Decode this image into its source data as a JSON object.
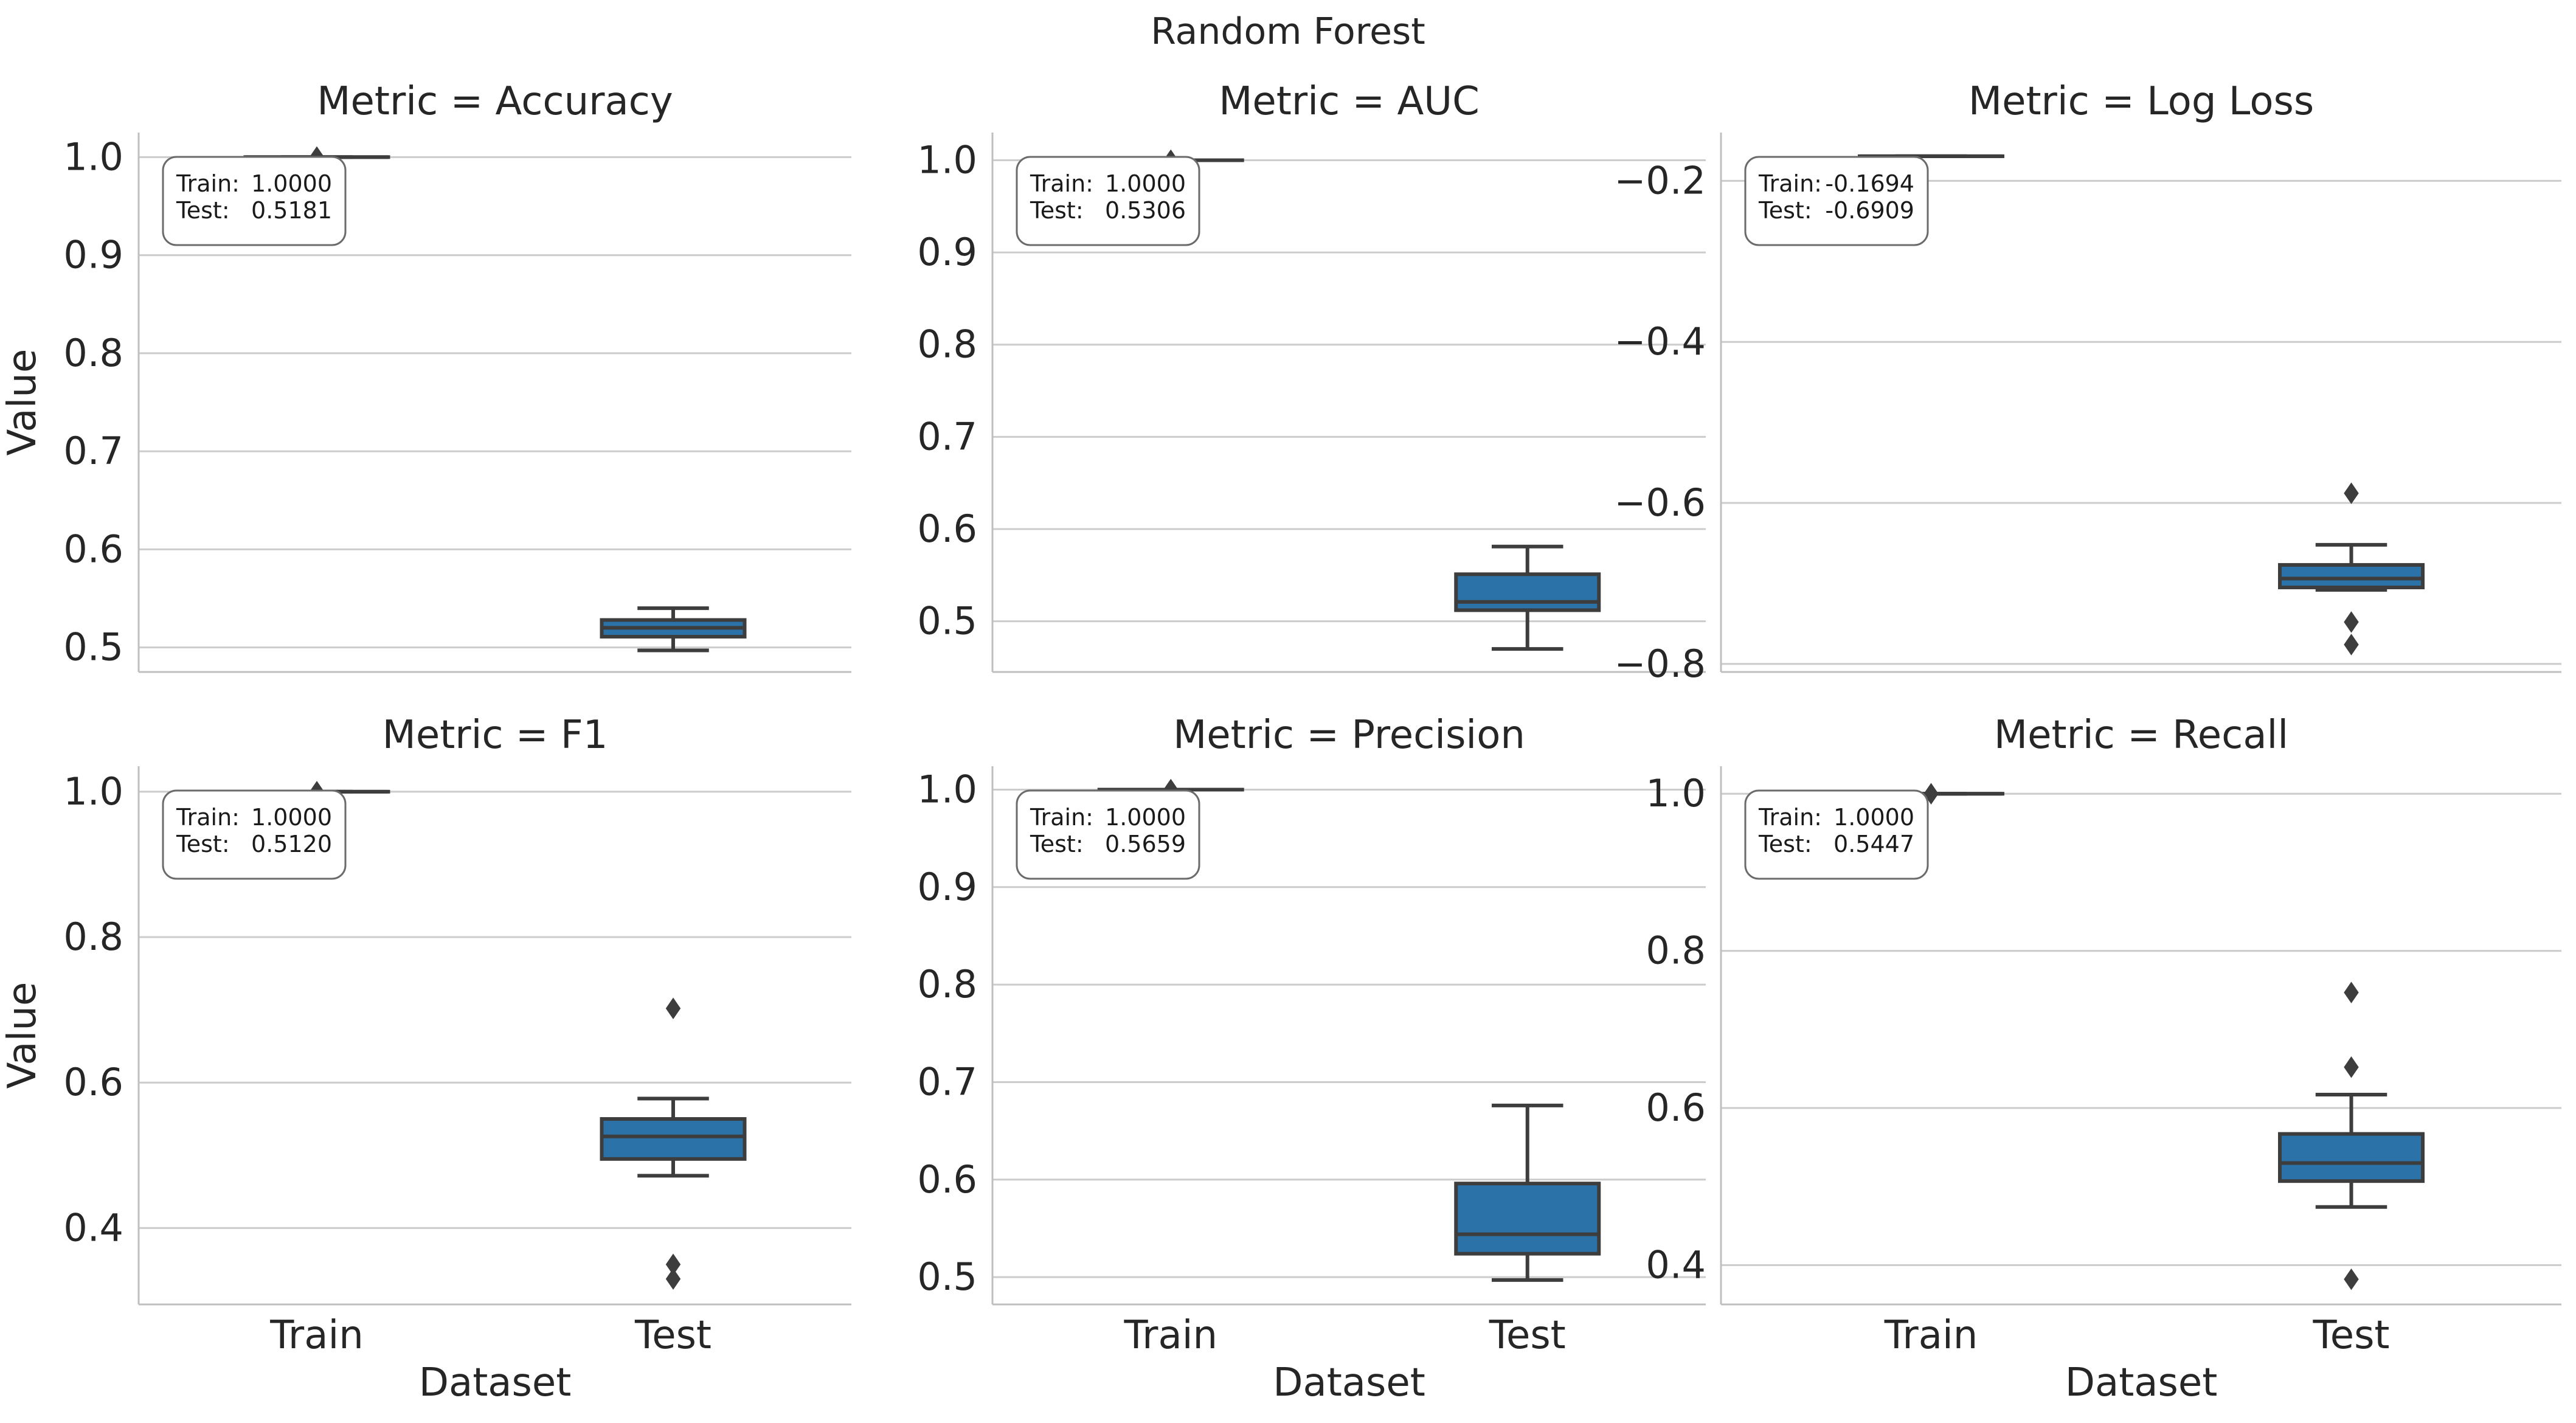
{
  "figure": {
    "title": "Random Forest"
  },
  "colors": {
    "box_fill": "#2b72a8",
    "line": "#3d3d3d",
    "grid": "#cccccc",
    "axis": "#bfbfbf",
    "annot_border": "#6b6b6b"
  },
  "chart_data": [
    {
      "type": "box",
      "title": "Metric = Accuracy",
      "xlabel": "",
      "ylabel": "Value",
      "categories": [
        "Train",
        "Test"
      ],
      "ylim": [
        0.475,
        1.025
      ],
      "yticks": [
        0.5,
        0.6,
        0.7,
        0.8,
        0.9,
        1.0
      ],
      "ytick_labels": [
        "0.5",
        "0.6",
        "0.7",
        "0.8",
        "0.9",
        "1.0"
      ],
      "show_x_tick_labels": false,
      "boxes": [
        {
          "category": "Train",
          "q1": 1.0,
          "median": 1.0,
          "q3": 1.0,
          "whisker_low": 1.0,
          "whisker_high": 1.0,
          "outliers": [
            1.0
          ]
        },
        {
          "category": "Test",
          "q1": 0.511,
          "median": 0.52,
          "q3": 0.528,
          "whisker_low": 0.497,
          "whisker_high": 0.54,
          "outliers": []
        }
      ],
      "annotation": [
        {
          "label": "Train:",
          "value": "1.0000"
        },
        {
          "label": "Test:",
          "value": "0.5181"
        }
      ]
    },
    {
      "type": "box",
      "title": "Metric = AUC",
      "xlabel": "",
      "ylabel": "",
      "categories": [
        "Train",
        "Test"
      ],
      "ylim": [
        0.445,
        1.03
      ],
      "yticks": [
        0.5,
        0.6,
        0.7,
        0.8,
        0.9,
        1.0
      ],
      "ytick_labels": [
        "0.5",
        "0.6",
        "0.7",
        "0.8",
        "0.9",
        "1.0"
      ],
      "show_x_tick_labels": false,
      "boxes": [
        {
          "category": "Train",
          "q1": 1.0,
          "median": 1.0,
          "q3": 1.0,
          "whisker_low": 1.0,
          "whisker_high": 1.0,
          "outliers": [
            1.0
          ]
        },
        {
          "category": "Test",
          "q1": 0.512,
          "median": 0.521,
          "q3": 0.551,
          "whisker_low": 0.47,
          "whisker_high": 0.581,
          "outliers": []
        }
      ],
      "annotation": [
        {
          "label": "Train:",
          "value": "1.0000"
        },
        {
          "label": "Test:",
          "value": "0.5306"
        }
      ]
    },
    {
      "type": "box",
      "title": "Metric = Log Loss",
      "xlabel": "",
      "ylabel": "",
      "categories": [
        "Train",
        "Test"
      ],
      "ylim": [
        -0.81,
        -0.14
      ],
      "yticks": [
        -0.8,
        -0.6,
        -0.4,
        -0.2
      ],
      "ytick_labels": [
        "−0.8",
        "−0.6",
        "−0.4",
        "−0.2"
      ],
      "show_x_tick_labels": false,
      "boxes": [
        {
          "category": "Train",
          "q1": -0.1694,
          "median": -0.1694,
          "q3": -0.1694,
          "whisker_low": -0.1694,
          "whisker_high": -0.1694,
          "outliers": []
        },
        {
          "category": "Test",
          "q1": -0.705,
          "median": -0.694,
          "q3": -0.677,
          "whisker_low": -0.708,
          "whisker_high": -0.652,
          "outliers": [
            -0.588,
            -0.748,
            -0.776
          ]
        }
      ],
      "annotation": [
        {
          "label": "Train:",
          "value": "-0.1694"
        },
        {
          "label": "Test:",
          "value": "-0.6909"
        }
      ]
    },
    {
      "type": "box",
      "title": "Metric = F1",
      "xlabel": "Dataset",
      "ylabel": "Value",
      "categories": [
        "Train",
        "Test"
      ],
      "ylim": [
        0.295,
        1.035
      ],
      "yticks": [
        0.4,
        0.6,
        0.8,
        1.0
      ],
      "ytick_labels": [
        "0.4",
        "0.6",
        "0.8",
        "1.0"
      ],
      "show_x_tick_labels": true,
      "boxes": [
        {
          "category": "Train",
          "q1": 1.0,
          "median": 1.0,
          "q3": 1.0,
          "whisker_low": 1.0,
          "whisker_high": 1.0,
          "outliers": [
            1.0
          ]
        },
        {
          "category": "Test",
          "q1": 0.495,
          "median": 0.526,
          "q3": 0.55,
          "whisker_low": 0.472,
          "whisker_high": 0.578,
          "outliers": [
            0.702,
            0.35,
            0.33
          ]
        }
      ],
      "annotation": [
        {
          "label": "Train:",
          "value": "1.0000"
        },
        {
          "label": "Test:",
          "value": "0.5120"
        }
      ]
    },
    {
      "type": "box",
      "title": "Metric = Precision",
      "xlabel": "Dataset",
      "ylabel": "",
      "categories": [
        "Train",
        "Test"
      ],
      "ylim": [
        0.472,
        1.024
      ],
      "yticks": [
        0.5,
        0.6,
        0.7,
        0.8,
        0.9,
        1.0
      ],
      "ytick_labels": [
        "0.5",
        "0.6",
        "0.7",
        "0.8",
        "0.9",
        "1.0"
      ],
      "show_x_tick_labels": true,
      "boxes": [
        {
          "category": "Train",
          "q1": 1.0,
          "median": 1.0,
          "q3": 1.0,
          "whisker_low": 1.0,
          "whisker_high": 1.0,
          "outliers": [
            1.0
          ]
        },
        {
          "category": "Test",
          "q1": 0.524,
          "median": 0.544,
          "q3": 0.596,
          "whisker_low": 0.497,
          "whisker_high": 0.676,
          "outliers": []
        }
      ],
      "annotation": [
        {
          "label": "Train:",
          "value": "1.0000"
        },
        {
          "label": "Test:",
          "value": "0.5659"
        }
      ]
    },
    {
      "type": "box",
      "title": "Metric = Recall",
      "xlabel": "Dataset",
      "ylabel": "",
      "categories": [
        "Train",
        "Test"
      ],
      "ylim": [
        0.35,
        1.035
      ],
      "yticks": [
        0.4,
        0.6,
        0.8,
        1.0
      ],
      "ytick_labels": [
        "0.4",
        "0.6",
        "0.8",
        "1.0"
      ],
      "show_x_tick_labels": true,
      "boxes": [
        {
          "category": "Train",
          "q1": 1.0,
          "median": 1.0,
          "q3": 1.0,
          "whisker_low": 1.0,
          "whisker_high": 1.0,
          "outliers": [
            1.0
          ]
        },
        {
          "category": "Test",
          "q1": 0.507,
          "median": 0.53,
          "q3": 0.567,
          "whisker_low": 0.474,
          "whisker_high": 0.617,
          "outliers": [
            0.747,
            0.652,
            0.382
          ]
        }
      ],
      "annotation": [
        {
          "label": "Train:",
          "value": "1.0000"
        },
        {
          "label": "Test:",
          "value": "0.5447"
        }
      ]
    }
  ]
}
